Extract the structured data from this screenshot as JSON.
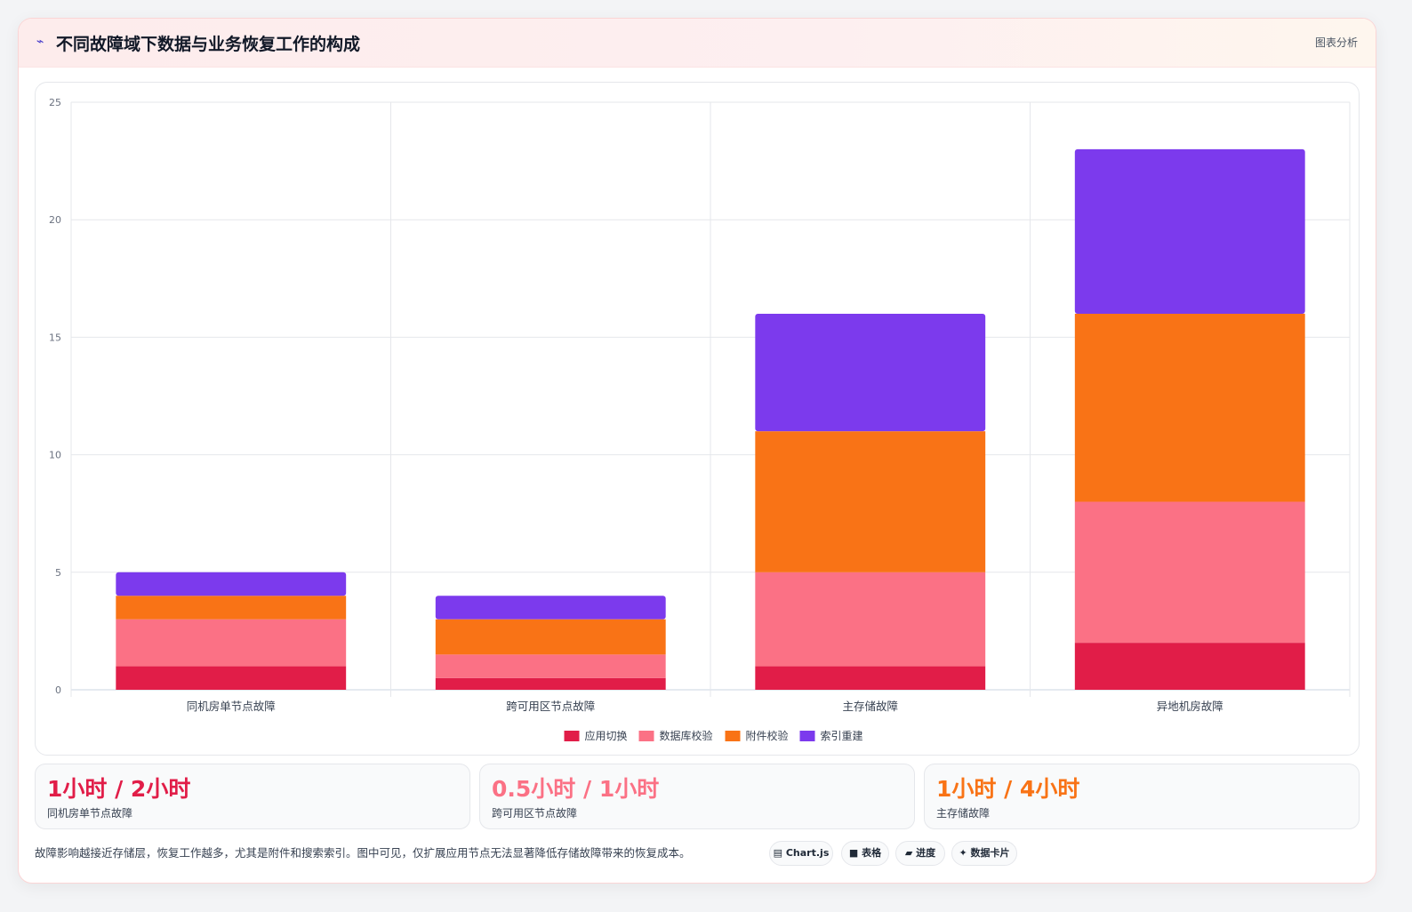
{
  "header": {
    "icon": "chart-line-icon",
    "title": "不同故障域下数据与业务恢复工作的构成",
    "tag": "图表分析"
  },
  "chart_data": {
    "type": "bar",
    "stacked": true,
    "categories": [
      "同机房单节点故障",
      "跨可用区节点故障",
      "主存储故障",
      "异地机房故障"
    ],
    "series": [
      {
        "name": "应用切换",
        "values": [
          1,
          0.5,
          1,
          2
        ],
        "color": "#e11d48"
      },
      {
        "name": "数据库校验",
        "values": [
          2,
          1,
          4,
          6
        ],
        "color": "#fb7185"
      },
      {
        "name": "附件校验",
        "values": [
          1,
          1.5,
          6,
          8
        ],
        "color": "#f97316"
      },
      {
        "name": "索引重建",
        "values": [
          1,
          1,
          5,
          7
        ],
        "color": "#7c3aed"
      }
    ],
    "ylim": [
      0,
      25
    ],
    "yticks": [
      0,
      5,
      10,
      15,
      20,
      25
    ],
    "grid": true,
    "legend_position": "bottom"
  },
  "stats": [
    {
      "value": "1小时 / 2小时",
      "label": "同机房单节点故障",
      "color": "#e11d48"
    },
    {
      "value": "0.5小时 / 1小时",
      "label": "跨可用区节点故障",
      "color": "#fb7185"
    },
    {
      "value": "1小时 / 4小时",
      "label": "主存储故障",
      "color": "#f97316"
    }
  ],
  "footer": {
    "note": "故障影响越接近存储层，恢复工作越多，尤其是附件和搜索索引。图中可见，仅扩展应用节点无法显著降低存储故障带来的恢复成本。",
    "pills": [
      {
        "icon": "chart-icon",
        "glyph": "▤",
        "label": "Chart.js"
      },
      {
        "icon": "table-icon",
        "glyph": "■",
        "label": "表格"
      },
      {
        "icon": "progress-icon",
        "glyph": "▰",
        "label": "进度"
      },
      {
        "icon": "sparkle-icon",
        "glyph": "✦",
        "label": "数据卡片"
      }
    ]
  }
}
